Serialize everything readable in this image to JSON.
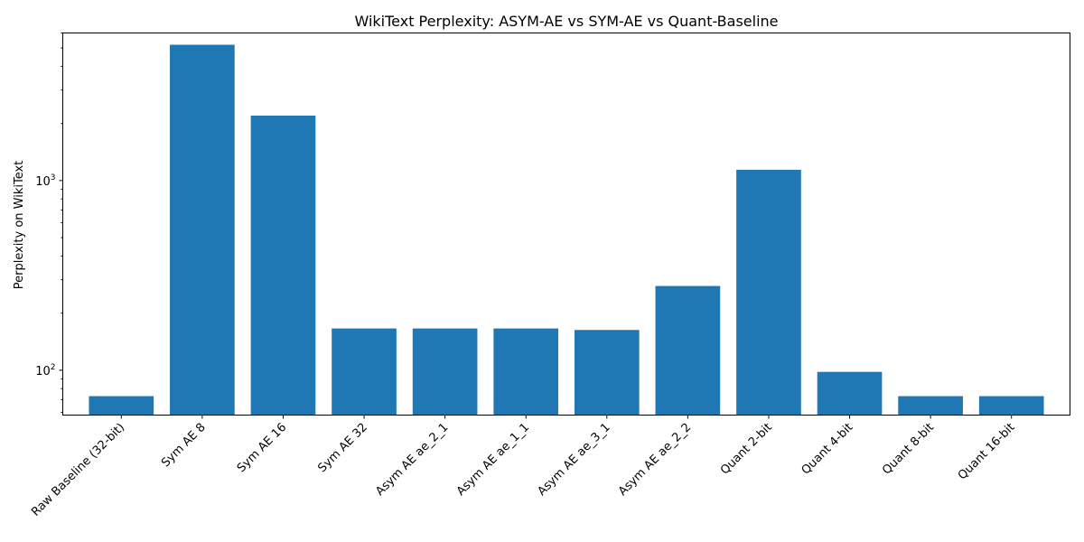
{
  "chart_data": {
    "type": "bar",
    "title": "WikiText Perplexity: ASYM-AE vs SYM-AE vs Quant-Baseline",
    "xlabel": "",
    "ylabel": "Perplexity on WikiText",
    "yscale": "log",
    "ylim": [
      58,
      6000
    ],
    "categories": [
      "Raw Baseline (32-bit)",
      "Sym AE 8",
      "Sym AE 16",
      "Sym AE 32",
      "Asym AE ae_2_1",
      "Asym AE ae_1_1",
      "Asym AE ae_3_1",
      "Asym AE ae_2_2",
      "Quant 2-bit",
      "Quant 4-bit",
      "Quant 8-bit",
      "Quant 16-bit"
    ],
    "values": [
      73,
      5200,
      2200,
      166,
      166,
      166,
      163,
      278,
      1140,
      98,
      73,
      73
    ],
    "yticks": [
      {
        "value": 100,
        "base": "10",
        "exp": "2"
      },
      {
        "value": 1000,
        "base": "10",
        "exp": "3"
      }
    ],
    "bar_color": "#1f77b4"
  }
}
